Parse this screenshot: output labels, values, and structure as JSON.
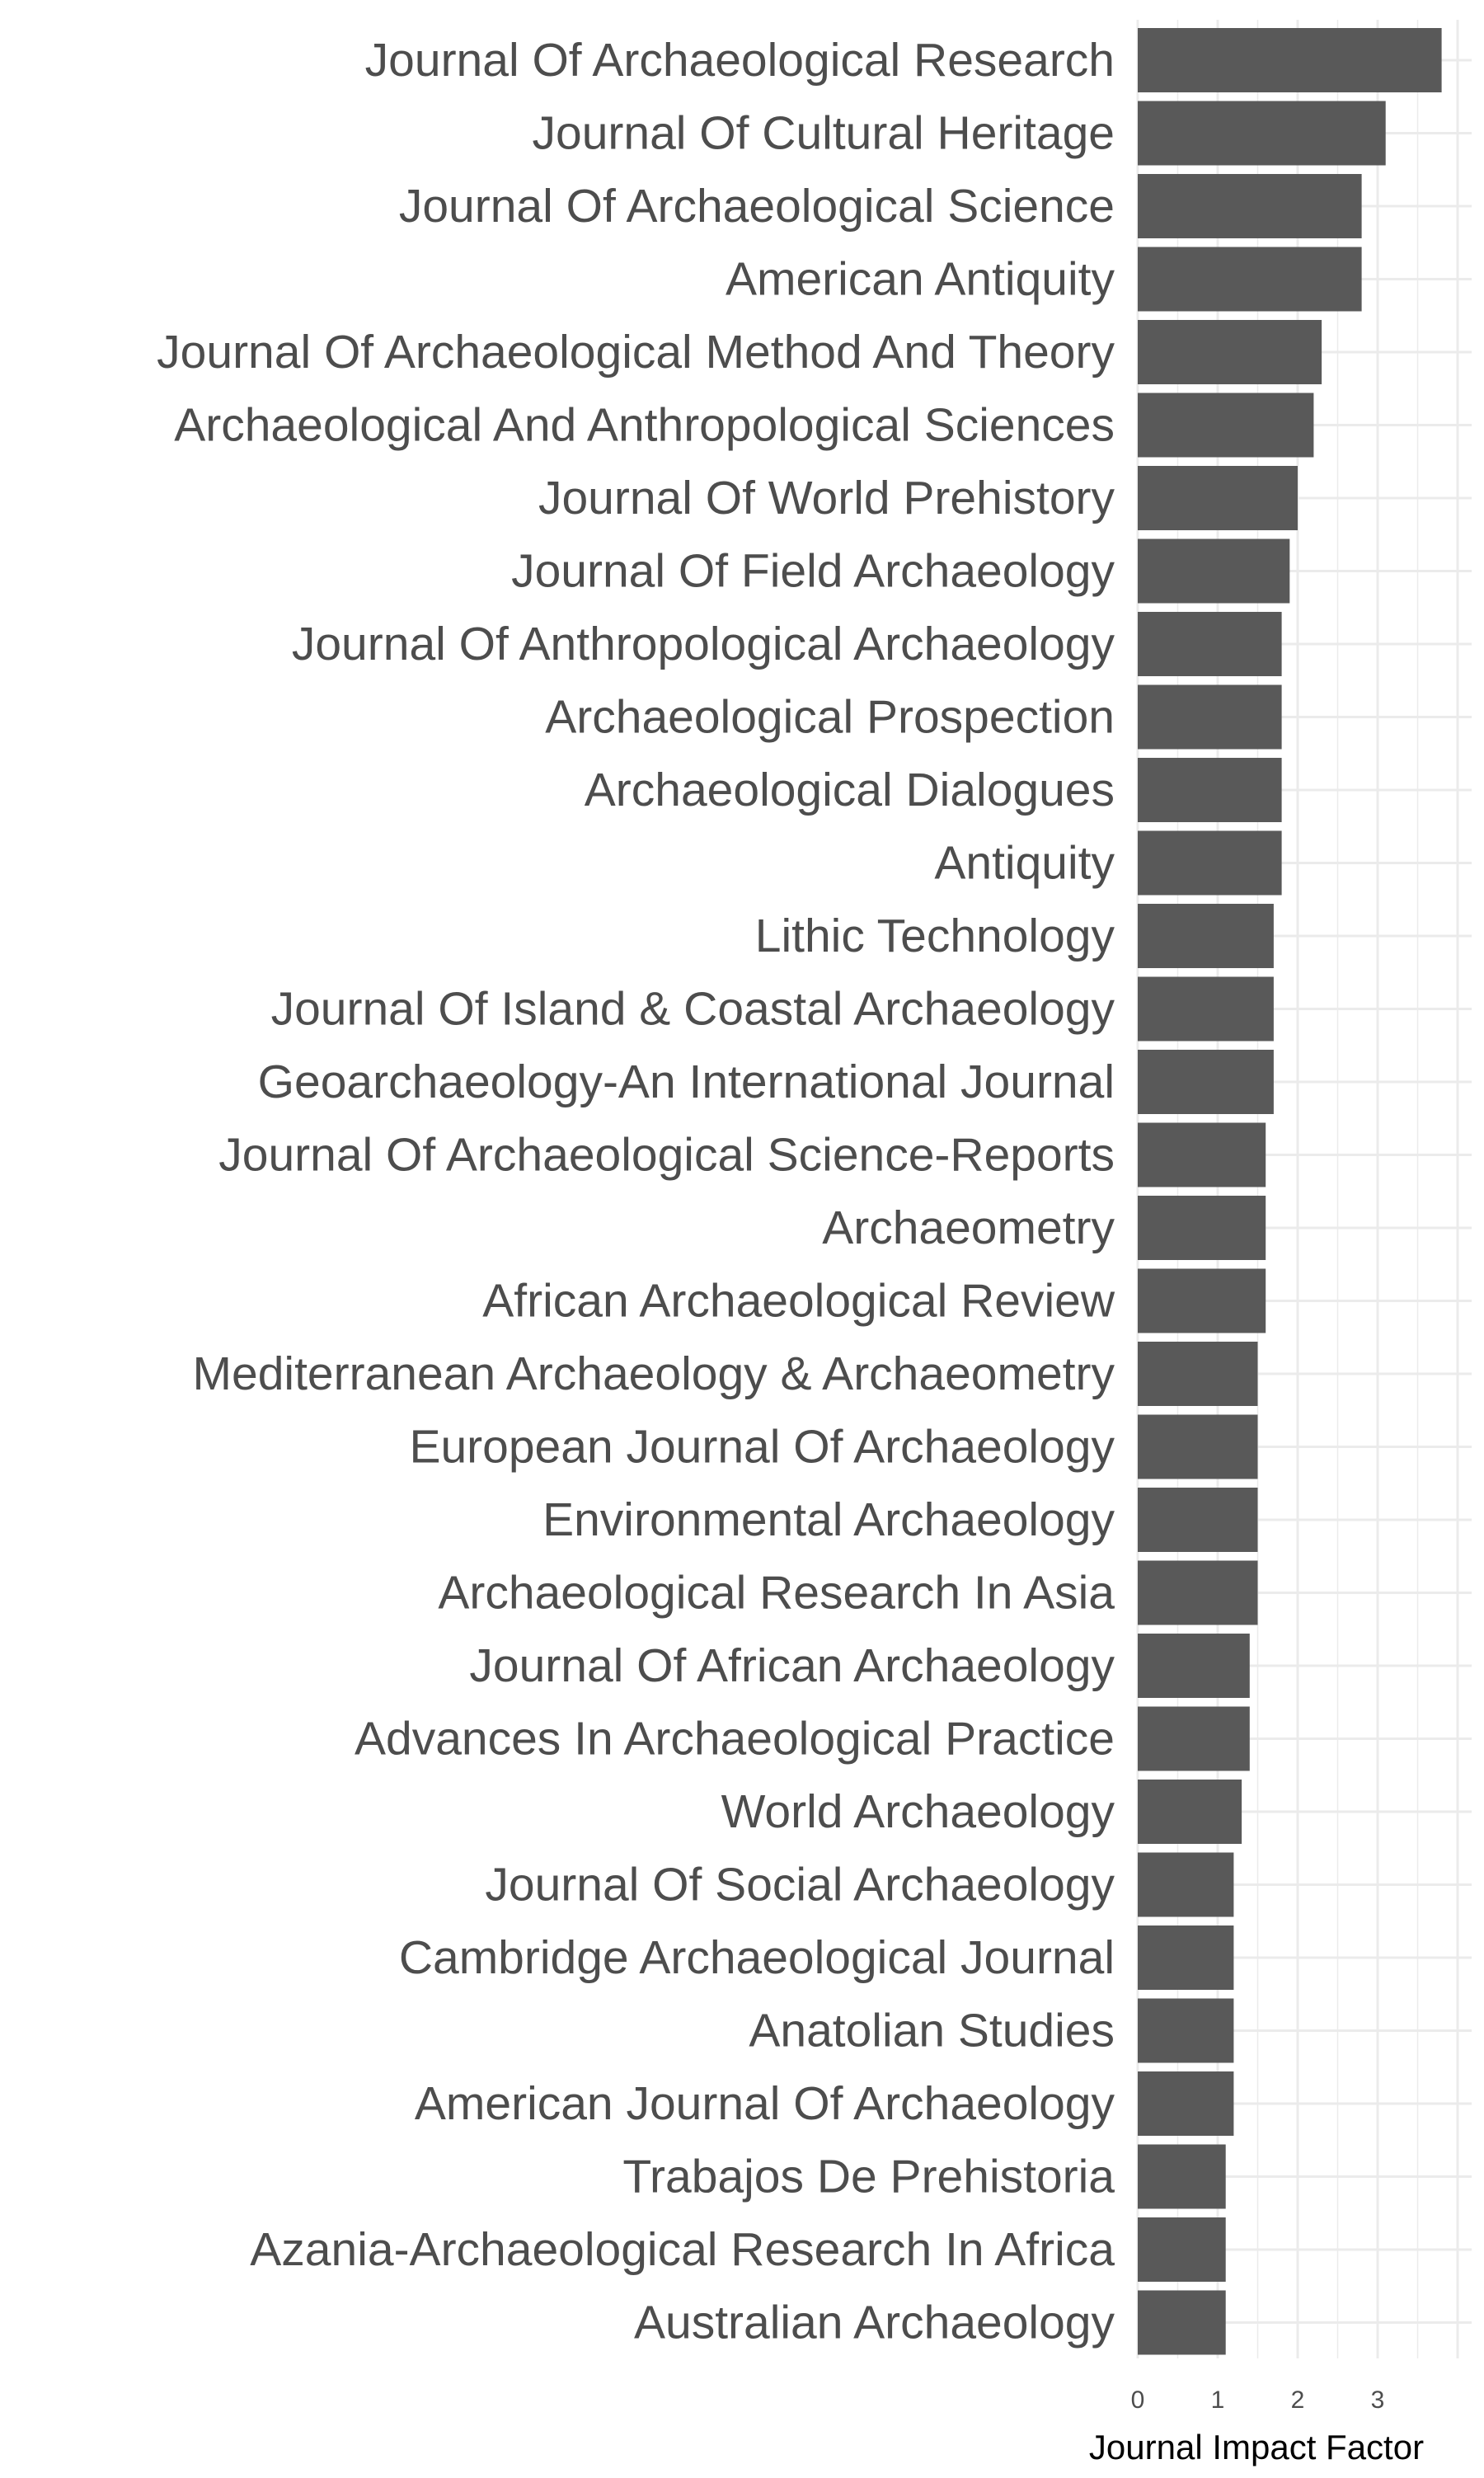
{
  "chart_data": {
    "type": "bar",
    "orientation": "horizontal",
    "title": "",
    "xlabel": "Journal Impact Factor",
    "ylabel": "",
    "xlim": [
      0,
      4
    ],
    "x_ticks": [
      0,
      1,
      2,
      3
    ],
    "grid": true,
    "legend": "none",
    "bar_color": "#595959",
    "grid_color": "#ebebeb",
    "categories": [
      "Journal Of Archaeological Research",
      "Journal Of Cultural Heritage",
      "Journal Of Archaeological Science",
      "American Antiquity",
      "Journal Of Archaeological Method And Theory",
      "Archaeological And Anthropological Sciences",
      "Journal Of World Prehistory",
      "Journal Of Field Archaeology",
      "Journal Of Anthropological Archaeology",
      "Archaeological Prospection",
      "Archaeological Dialogues",
      "Antiquity",
      "Lithic Technology",
      "Journal Of Island & Coastal Archaeology",
      "Geoarchaeology-An International Journal",
      "Journal Of Archaeological Science-Reports",
      "Archaeometry",
      "African Archaeological Review",
      "Mediterranean Archaeology & Archaeometry",
      "European Journal Of Archaeology",
      "Environmental Archaeology",
      "Archaeological Research In Asia",
      "Journal Of African Archaeology",
      "Advances In Archaeological Practice",
      "World Archaeology",
      "Journal Of Social Archaeology",
      "Cambridge Archaeological Journal",
      "Anatolian Studies",
      "American Journal Of Archaeology",
      "Trabajos De Prehistoria",
      "Azania-Archaeological Research In Africa",
      "Australian Archaeology"
    ],
    "values": [
      3.8,
      3.1,
      2.8,
      2.8,
      2.3,
      2.2,
      2.0,
      1.9,
      1.8,
      1.8,
      1.8,
      1.8,
      1.7,
      1.7,
      1.7,
      1.6,
      1.6,
      1.6,
      1.5,
      1.5,
      1.5,
      1.5,
      1.4,
      1.4,
      1.3,
      1.2,
      1.2,
      1.2,
      1.2,
      1.1,
      1.1,
      1.1
    ]
  }
}
